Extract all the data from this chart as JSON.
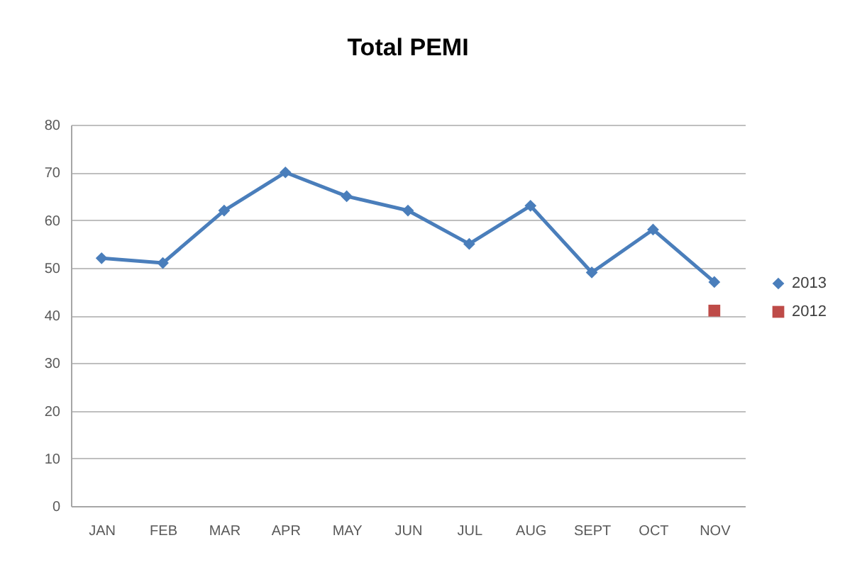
{
  "chart_data": {
    "type": "line",
    "title": "Total PEMI",
    "categories": [
      "JAN",
      "FEB",
      "MAR",
      "APR",
      "MAY",
      "JUN",
      "JUL",
      "AUG",
      "SEPT",
      "OCT",
      "NOV"
    ],
    "series": [
      {
        "name": "2013",
        "color": "#4a7ebb",
        "marker": "diamond",
        "values": [
          52,
          51,
          62,
          70,
          65,
          62,
          55,
          63,
          49,
          58,
          47
        ]
      },
      {
        "name": "2012",
        "color": "#be4b48",
        "marker": "square",
        "values": [
          null,
          null,
          null,
          null,
          null,
          null,
          null,
          null,
          null,
          null,
          41
        ]
      }
    ],
    "ylim": [
      0,
      80
    ],
    "yticks": [
      0,
      10,
      20,
      30,
      40,
      50,
      60,
      70,
      80
    ],
    "grid": "y",
    "legend": "right",
    "line_style": "solid"
  }
}
